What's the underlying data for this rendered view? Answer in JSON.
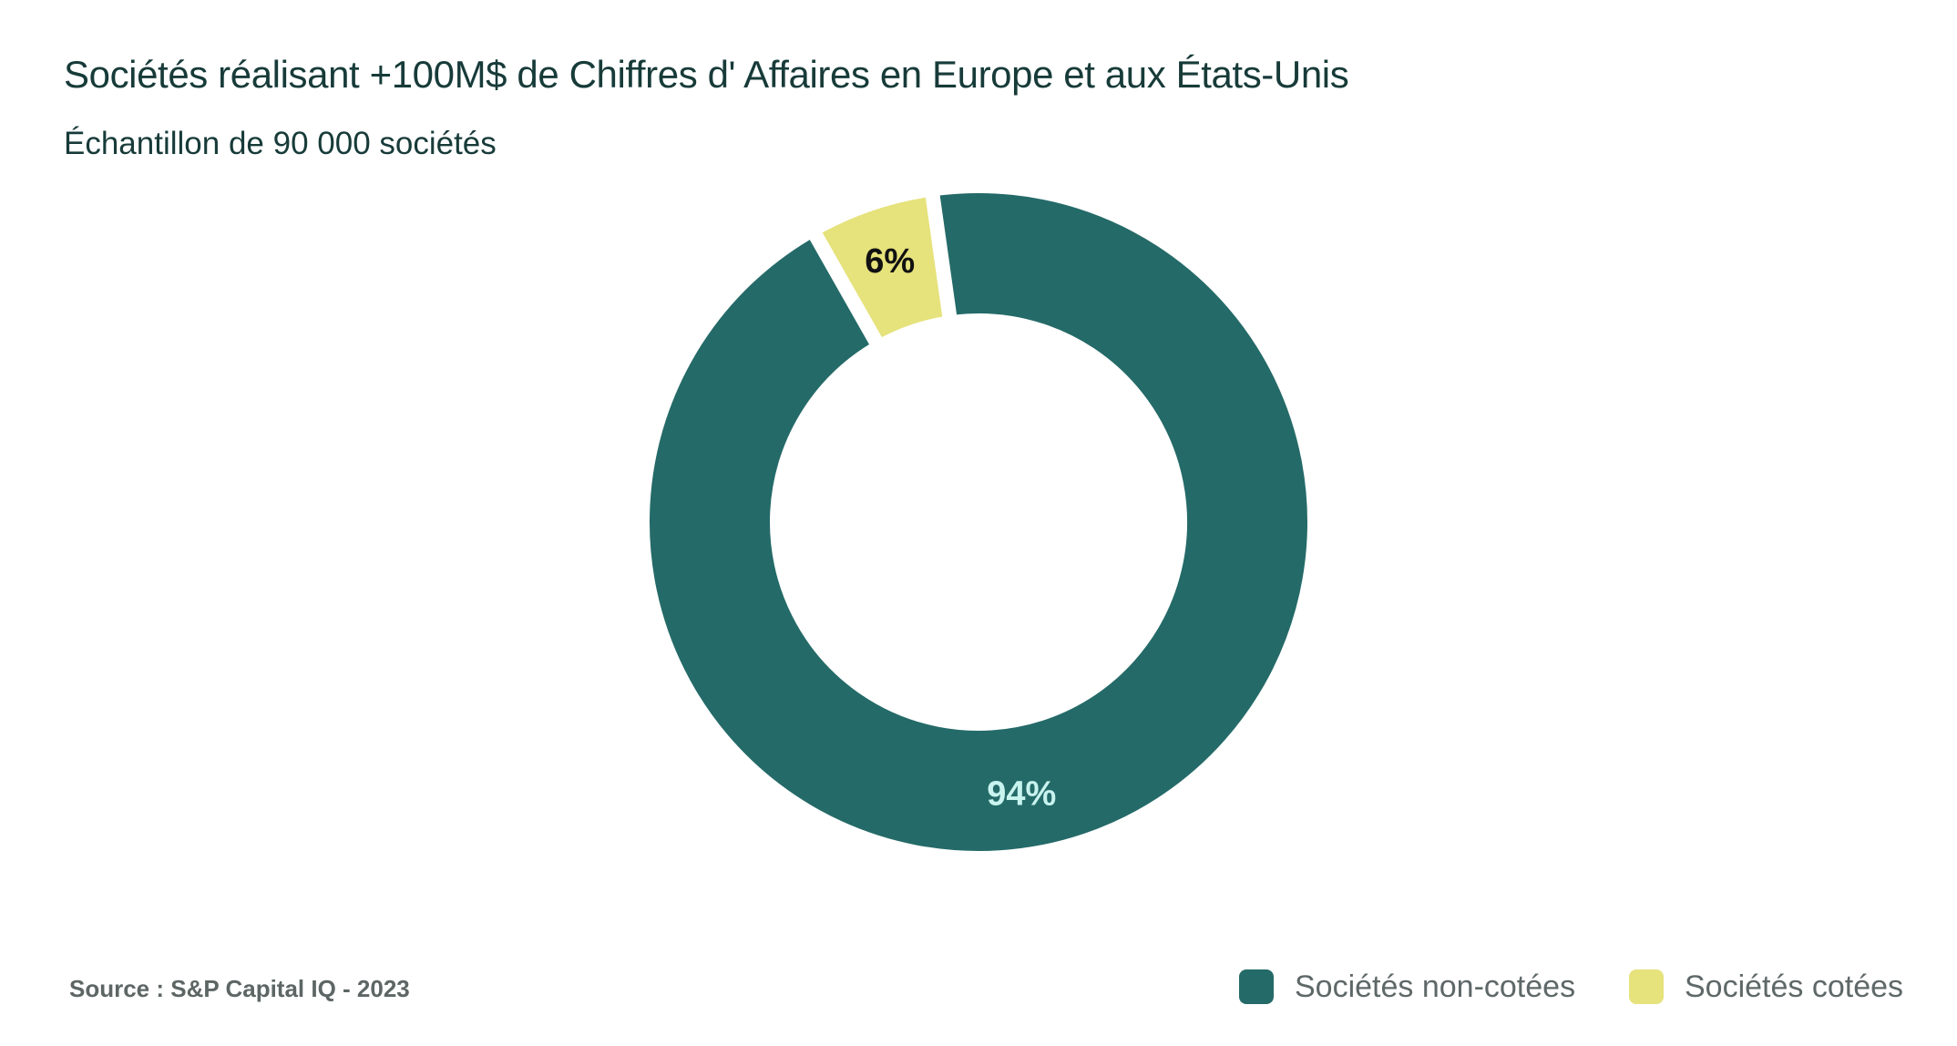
{
  "chart_data": {
    "type": "pie",
    "title": "Sociétés réalisant +100M$ de Chiffres d' Affaires en Europe et aux États-Unis",
    "subtitle": "Échantillon de 90 000 sociétés",
    "source": "Source : S&P Capital IQ - 2023",
    "donut": true,
    "series": [
      {
        "name": "Sociétés non-cotées",
        "value": 94,
        "label": "94%",
        "color": "#246a68",
        "label_color": "#c8f3ef"
      },
      {
        "name": "Sociétés cotées",
        "value": 6,
        "label": "6%",
        "color": "#e6e27c",
        "label_color": "#111111"
      }
    ],
    "legend_position": "bottom-right"
  }
}
